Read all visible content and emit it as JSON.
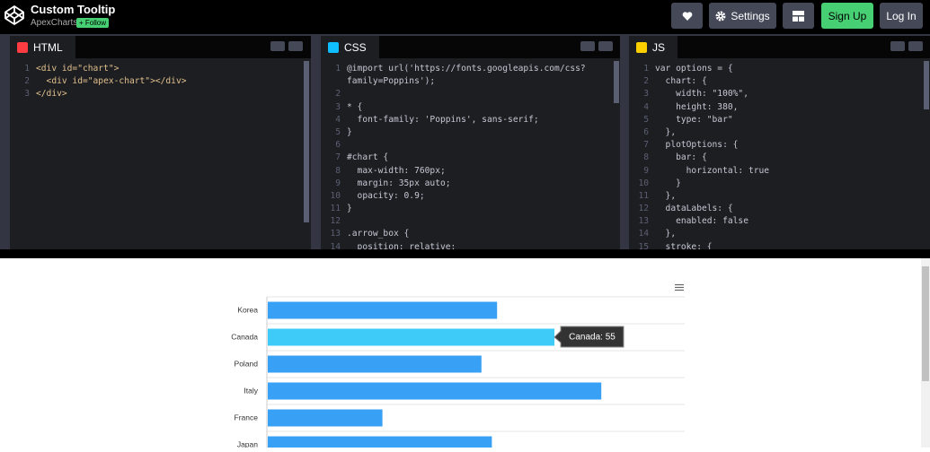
{
  "header": {
    "title": "Custom Tooltip",
    "author": "ApexCharts",
    "follow": "+ Follow",
    "buttons": {
      "settings": "Settings",
      "sign_up": "Sign Up",
      "log_in": "Log In"
    }
  },
  "editors": [
    {
      "name": "HTML",
      "lines": [
        {
          "n": 1,
          "code": "<div id=\"chart\">"
        },
        {
          "n": 2,
          "code": "  <div id=\"apex-chart\"></div>"
        },
        {
          "n": 3,
          "code": "</div>"
        }
      ]
    },
    {
      "name": "CSS",
      "lines": [
        {
          "n": 1,
          "code": "@import url('https://fonts.googleapis.com/css?"
        },
        {
          "code": "family=Poppins');"
        },
        {
          "n": 2
        },
        {
          "n": 3,
          "code": "* {"
        },
        {
          "n": 4,
          "code": "  font-family: 'Poppins', sans-serif;"
        },
        {
          "n": 5,
          "code": "}"
        },
        {
          "n": 6
        },
        {
          "n": 7,
          "code": "#chart {"
        },
        {
          "n": 8,
          "code": "  max-width: 760px;"
        },
        {
          "n": 9,
          "code": "  margin: 35px auto;"
        },
        {
          "n": 10,
          "code": "  opacity: 0.9;"
        },
        {
          "n": 11,
          "code": "}"
        },
        {
          "n": 12
        },
        {
          "n": 13,
          "code": ".arrow_box {"
        },
        {
          "n": 14,
          "code": "  position: relative;"
        }
      ]
    },
    {
      "name": "JS",
      "lines": [
        {
          "n": 1,
          "code": "var options = {"
        },
        {
          "n": 2,
          "code": "  chart: {"
        },
        {
          "n": 3,
          "code": "    width: \"100%\","
        },
        {
          "n": 4,
          "code": "    height: 380,"
        },
        {
          "n": 5,
          "code": "    type: \"bar\""
        },
        {
          "n": 6,
          "code": "  },"
        },
        {
          "n": 7,
          "code": "  plotOptions: {"
        },
        {
          "n": 8,
          "code": "    bar: {"
        },
        {
          "n": 9,
          "code": "      horizontal: true"
        },
        {
          "n": 10,
          "code": "    }"
        },
        {
          "n": 11,
          "code": "  },"
        },
        {
          "n": 12,
          "code": "  dataLabels: {"
        },
        {
          "n": 13,
          "code": "    enabled: false"
        },
        {
          "n": 14,
          "code": "  },"
        },
        {
          "n": 15,
          "code": "  stroke: {"
        }
      ]
    }
  ],
  "chart_data": {
    "type": "bar",
    "orientation": "horizontal",
    "categories": [
      "Korea",
      "Canada",
      "Poland",
      "Italy",
      "France",
      "Japan"
    ],
    "values": [
      44,
      55,
      41,
      64,
      22,
      43
    ],
    "color": "#38a1f6",
    "hover_color": "#3ecbf7",
    "hover_index": 1,
    "xlim": [
      0,
      80
    ],
    "tooltip": "Canada: 55"
  }
}
